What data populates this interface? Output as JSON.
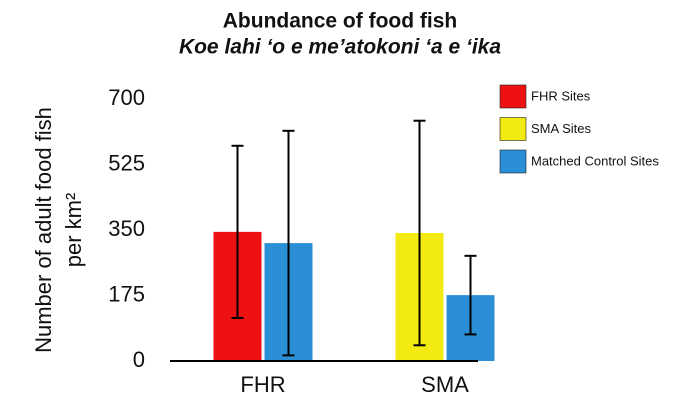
{
  "chart_data": {
    "type": "bar",
    "title": "Abundance of food fish",
    "subtitle": "Koe lahi ‘o e me’atokoni ‘a e ‘ika",
    "y_label": [
      "Number of adult food fish",
      "per km²"
    ],
    "categories": [
      "FHR",
      "SMA"
    ],
    "series": [
      {
        "name": "FHR Sites",
        "color": "#ee1111",
        "values": [
          345,
          null
        ],
        "errors": [
          230,
          null
        ]
      },
      {
        "name": "SMA Sites",
        "color": "#f2ea10",
        "values": [
          null,
          342
        ],
        "errors": [
          null,
          300
        ]
      },
      {
        "name": "Matched Control Sites",
        "color": "#2a8fd6",
        "values": [
          315,
          176
        ],
        "errors": [
          300,
          105
        ]
      }
    ],
    "ylim": [
      0,
      700
    ],
    "yticks": [
      0,
      175,
      350,
      525,
      700
    ],
    "legend": "top-right"
  }
}
